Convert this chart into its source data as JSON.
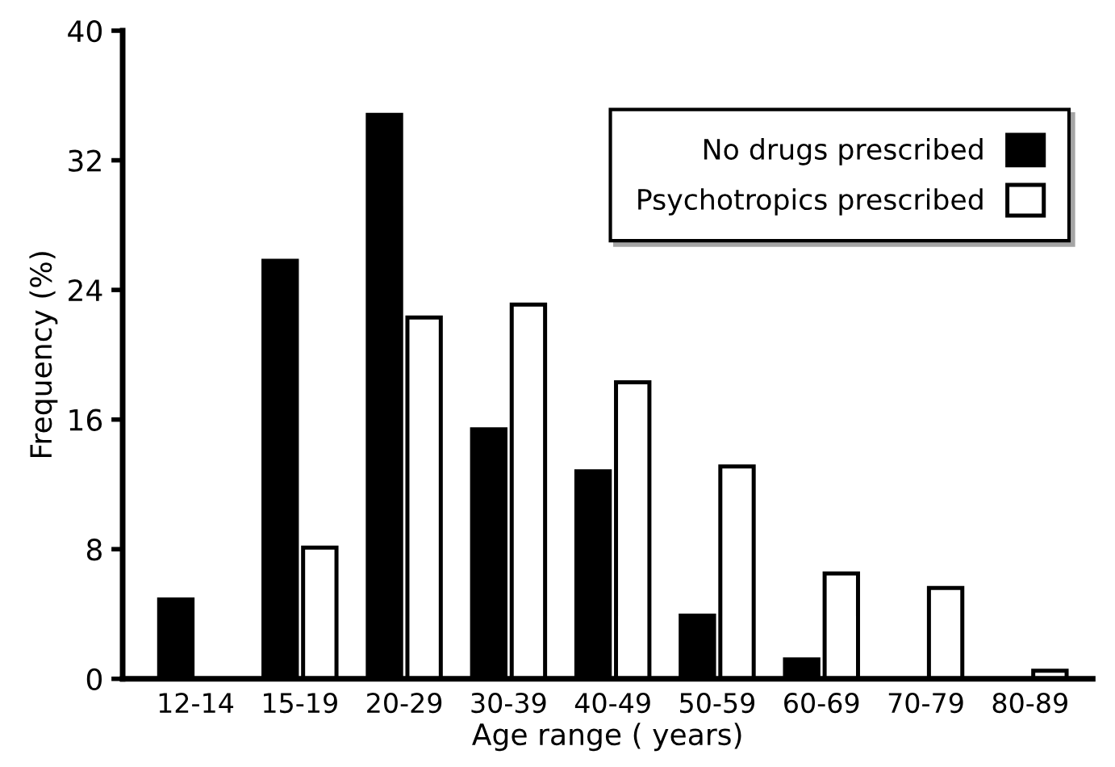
{
  "chart_data": {
    "type": "bar",
    "xlabel": "Age range ( years)",
    "ylabel": "Frequency (%)",
    "categories": [
      "12-14",
      "15-19",
      "20-29",
      "30-39",
      "40-49",
      "50-59",
      "60-69",
      "70-79",
      "80-89"
    ],
    "series": [
      {
        "name": "No drugs prescribed",
        "color": "#000000",
        "values": [
          4.9,
          25.8,
          34.8,
          15.4,
          12.8,
          3.9,
          1.2,
          0,
          0
        ]
      },
      {
        "name": "Psychotropics prescribed",
        "color": "#ffffff",
        "values": [
          0,
          8.1,
          22.3,
          23.1,
          18.3,
          13.1,
          6.5,
          5.6,
          0.5
        ]
      }
    ],
    "ylim": [
      0,
      40
    ],
    "yticks": [
      0,
      8,
      16,
      24,
      32,
      40
    ],
    "grid": false,
    "legend": "top right"
  }
}
